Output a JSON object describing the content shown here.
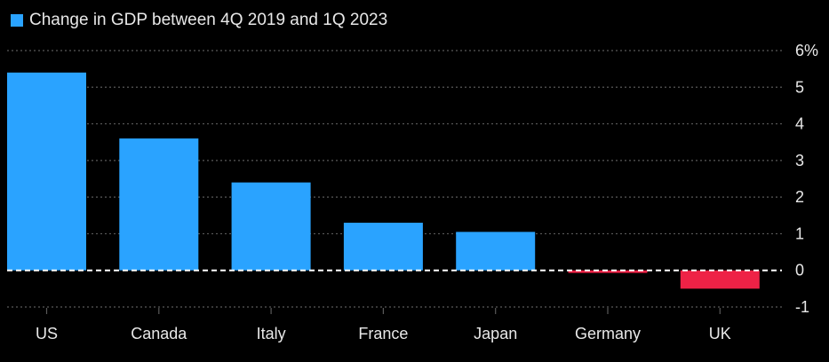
{
  "chart_data": {
    "type": "bar",
    "title": "",
    "xlabel": "",
    "ylabel": "",
    "unit_suffix": "%",
    "categories": [
      "US",
      "Canada",
      "Italy",
      "France",
      "Japan",
      "Germany",
      "UK"
    ],
    "series": [
      {
        "name": "Change in GDP between 4Q 2019 and 1Q 2023",
        "values": [
          5.4,
          3.6,
          2.4,
          1.3,
          1.05,
          -0.07,
          -0.5
        ]
      }
    ],
    "ylim": [
      -1,
      6
    ],
    "yticks": [
      -1,
      0,
      1,
      2,
      3,
      4,
      5,
      6
    ],
    "grid": true,
    "legend": "top-left",
    "colors": {
      "positive": "#2aa3ff",
      "negative": "#ee2246",
      "grid": "#5a5a5a",
      "zero_line": "#ffffff",
      "text": "#e8e8e8"
    }
  }
}
